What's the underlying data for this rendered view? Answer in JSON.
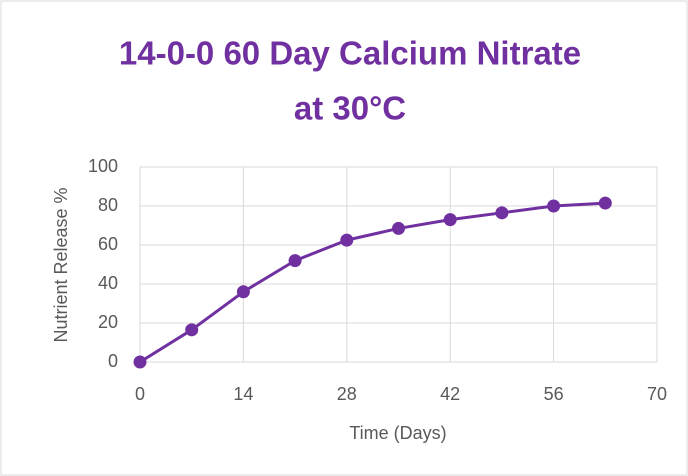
{
  "chart_data": {
    "type": "line",
    "title": [
      "14-0-0 60 Day Calcium Nitrate",
      "at 30°C"
    ],
    "x_label": "Time (Days)",
    "y_label": "Nutrient Release %",
    "x": [
      0,
      7,
      14,
      21,
      28,
      35,
      42,
      49,
      56,
      63
    ],
    "series": [
      {
        "name": "Nutrient Release",
        "color": "#7030a0",
        "values": [
          0,
          16.5,
          36,
          52,
          62.5,
          68.5,
          73,
          76.5,
          80,
          81.5
        ]
      }
    ],
    "xlim": [
      0,
      70
    ],
    "xticks": [
      0,
      14,
      28,
      42,
      56,
      70
    ],
    "ylim": [
      0,
      100
    ],
    "yticks": [
      0,
      20,
      40,
      60,
      80,
      100
    ],
    "grid": true
  }
}
